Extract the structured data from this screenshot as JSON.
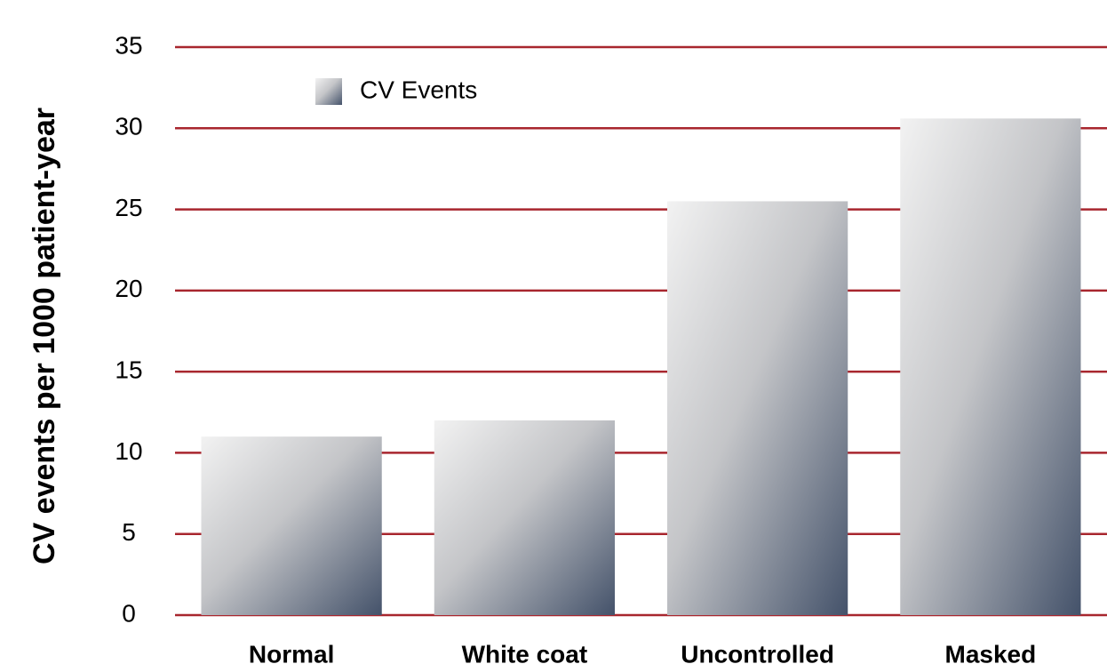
{
  "chart_data": {
    "type": "bar",
    "y_label": "CV events per 1000 patient-year",
    "categories": [
      "Normal",
      "White coat",
      "Uncontrolled",
      "Masked"
    ],
    "series": [
      {
        "name": "CV Events",
        "color": [
          "#f2f2f2",
          "#44526a"
        ],
        "values": [
          11,
          12,
          25.5,
          30.6
        ]
      }
    ],
    "ylim": [
      0,
      35
    ],
    "yticks": [
      0,
      5,
      10,
      15,
      20,
      25,
      30,
      35
    ],
    "grid": true,
    "grid_color": "#a8262e",
    "legend": "top-left"
  }
}
